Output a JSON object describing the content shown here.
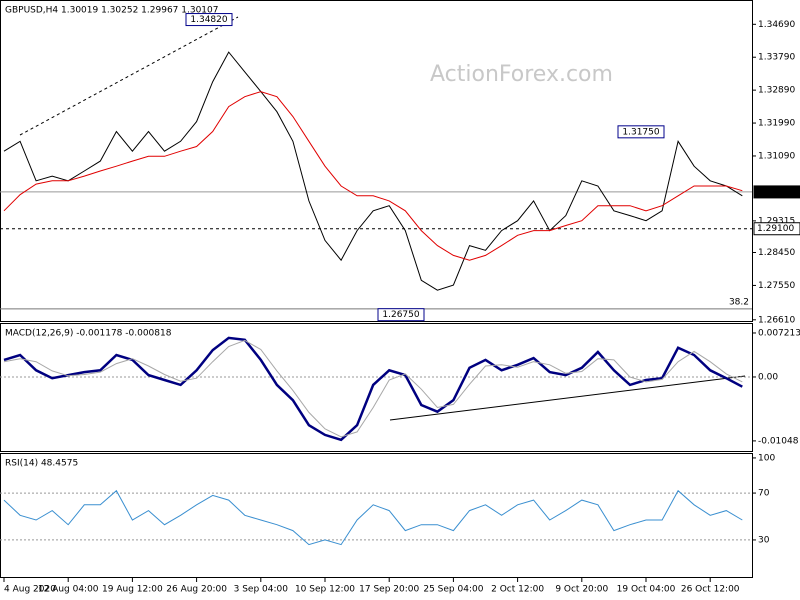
{
  "chart_data": [
    {
      "type": "line",
      "title": "GBPUSD,H4  1.30019 1.30252 1.29967 1.30107",
      "watermark": "ActionForex.com",
      "ylim": [
        1.2655,
        1.353
      ],
      "yticks": [
        {
          "value": 1.3469,
          "label": "1.34690"
        },
        {
          "value": 1.3379,
          "label": "1.33790"
        },
        {
          "value": 1.3289,
          "label": "1.32890"
        },
        {
          "value": 1.3199,
          "label": "1.31990"
        },
        {
          "value": 1.3109,
          "label": "1.31090"
        },
        {
          "value": 1.29315,
          "label": "1.29315"
        },
        {
          "value": 1.2845,
          "label": "1.28450"
        },
        {
          "value": 1.2755,
          "label": "1.27550"
        },
        {
          "value": 1.2661,
          "label": "1.26610"
        }
      ],
      "series": [
        {
          "color": "#000000",
          "values": [
            1.3122,
            1.3149,
            1.3041,
            1.3054,
            1.3041,
            1.3068,
            1.3095,
            1.3176,
            1.3122,
            1.3176,
            1.3122,
            1.3149,
            1.3203,
            1.3312,
            1.3393,
            1.3339,
            1.3285,
            1.323,
            1.3149,
            1.2986,
            1.2878,
            1.2824,
            1.2905,
            1.2959,
            1.2973,
            1.2905,
            1.2769,
            1.2742,
            1.2756,
            1.2864,
            1.2851,
            1.2905,
            1.2932,
            1.2986,
            1.2905,
            1.2946,
            1.3041,
            1.3027,
            1.2959,
            1.2946,
            1.2932,
            1.2959,
            1.3149,
            1.3081,
            1.3041,
            1.3027,
            1.3
          ]
        },
        {
          "color": "#e00000",
          "values": [
            1.2959,
            1.3003,
            1.3032,
            1.3041,
            1.3041,
            1.3054,
            1.3068,
            1.3081,
            1.3095,
            1.3108,
            1.3108,
            1.3122,
            1.3135,
            1.3176,
            1.3244,
            1.3271,
            1.3285,
            1.3271,
            1.3217,
            1.3149,
            1.3081,
            1.3027,
            1.3,
            1.3,
            1.2986,
            1.2959,
            1.2905,
            1.2864,
            1.2837,
            1.2824,
            1.2837,
            1.2864,
            1.2892,
            1.2905,
            1.2905,
            1.2919,
            1.2932,
            1.2973,
            1.2973,
            1.2973,
            1.2959,
            1.2973,
            1.3,
            1.3027,
            1.3027,
            1.3027,
            1.3014
          ]
        }
      ],
      "hlines": [
        {
          "label": "1.30107",
          "value": 1.30107,
          "style": "solid"
        },
        {
          "label": "1.29100",
          "value": 1.291,
          "style": "dashed"
        }
      ],
      "fib": {
        "label": "38.2",
        "value": 1.2691
      },
      "annotations": [
        {
          "label": "1.34820",
          "value": 1.3482
        },
        {
          "label": "1.31750",
          "value": 1.3175
        },
        {
          "label": "1.26750",
          "value": 1.2675
        }
      ]
    },
    {
      "type": "line",
      "title": "MACD(12,26,9) -0.001178 -0.000818",
      "ylim": [
        -0.0123,
        0.00852
      ],
      "yticks": [
        0.007213,
        {
          "value": 0,
          "label": "0.00"
        },
        -0.01048
      ],
      "levels": [
        0
      ],
      "series": [
        {
          "color": "#000080",
          "width": 2.5,
          "values": [
            0.0028,
            0.0036,
            0.0011,
            -0.0002,
            0.0003,
            0.0008,
            0.0011,
            0.0036,
            0.0028,
            0.0003,
            -0.0005,
            -0.0013,
            0.0011,
            0.0044,
            0.0064,
            0.0061,
            0.0028,
            -0.0013,
            -0.0038,
            -0.0079,
            -0.0095,
            -0.0103,
            -0.0079,
            -0.0013,
            0.0011,
            0.0003,
            -0.0046,
            -0.0057,
            -0.0038,
            0.0015,
            0.0028,
            0.0011,
            0.002,
            0.0031,
            0.0008,
            0.0003,
            0.0015,
            0.0041,
            0.0011,
            -0.0013,
            -0.0005,
            -0.0002,
            0.0048,
            0.0036,
            0.0011,
            -0.0002,
            -0.0016
          ]
        },
        {
          "color": "#a8a8a8",
          "width": 1,
          "values": [
            0.0025,
            0.003,
            0.0025,
            0.001,
            0.0002,
            0.0004,
            0.0008,
            0.0022,
            0.003,
            0.0018,
            0.0004,
            -0.0007,
            -0.0002,
            0.0025,
            0.005,
            0.006,
            0.0045,
            0.001,
            -0.0022,
            -0.0058,
            -0.0085,
            -0.0098,
            -0.009,
            -0.005,
            -0.0005,
            0.0005,
            -0.002,
            -0.005,
            -0.0045,
            -0.0012,
            0.0018,
            0.002,
            0.0016,
            0.0025,
            0.002,
            0.0006,
            0.0009,
            0.003,
            0.0028,
            0.0,
            -0.0008,
            -0.0004,
            0.0025,
            0.0042,
            0.0025,
            0.0005,
            -0.0008
          ]
        }
      ]
    },
    {
      "type": "line",
      "title": "RSI(14) 48.4575",
      "ylim": [
        -2.5,
        102.5
      ],
      "yticks": [
        100,
        70,
        30
      ],
      "levels": [
        70,
        30
      ],
      "series": [
        {
          "color": "#3a8fd0",
          "width": 1,
          "values": [
            64,
            51,
            47,
            55,
            43,
            60,
            60,
            72,
            47,
            55,
            43,
            51,
            60,
            68,
            64,
            51,
            47,
            43,
            38,
            26,
            30,
            26,
            47,
            60,
            55,
            38,
            43,
            43,
            38,
            55,
            60,
            51,
            60,
            64,
            47,
            55,
            64,
            60,
            38,
            43,
            47,
            47,
            72,
            60,
            51,
            55,
            47
          ]
        }
      ],
      "categories": [
        "4 Aug 2020",
        null,
        null,
        null,
        "12 Aug 04:00",
        null,
        null,
        null,
        "19 Aug 12:00",
        null,
        null,
        null,
        "26 Aug 20:00",
        null,
        null,
        null,
        "3 Sep 04:00",
        null,
        null,
        null,
        "10 Sep 12:00",
        null,
        null,
        null,
        "17 Sep 20:00",
        null,
        null,
        null,
        "25 Sep 04:00",
        null,
        null,
        null,
        "2 Oct 12:00",
        null,
        null,
        null,
        "9 Oct 20:00",
        null,
        null,
        null,
        "19 Oct 04:00",
        null,
        null,
        null,
        "26 Oct 12:00",
        null,
        null
      ]
    }
  ]
}
